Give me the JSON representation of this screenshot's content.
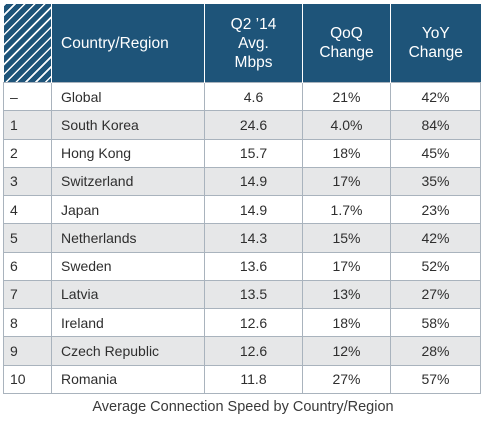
{
  "chart_data": {
    "type": "table",
    "title": "Average Connection Speed by Country/Region",
    "columns": [
      "",
      "Country/Region",
      "Q2 ’14 Avg. Mbps",
      "QoQ Change",
      "YoY Change"
    ],
    "header_lines": {
      "country": "Country/Region",
      "speed": [
        "Q2 ’14",
        "Avg.",
        "Mbps"
      ],
      "qoq": [
        "QoQ",
        "Change"
      ],
      "yoy": [
        "YoY",
        "Change"
      ]
    },
    "rows": [
      {
        "rank": "–",
        "country": "Global",
        "speed": "4.6",
        "qoq": "21%",
        "yoy": "42%"
      },
      {
        "rank": "1",
        "country": "South Korea",
        "speed": "24.6",
        "qoq": "4.0%",
        "yoy": "84%"
      },
      {
        "rank": "2",
        "country": "Hong Kong",
        "speed": "15.7",
        "qoq": "18%",
        "yoy": "45%"
      },
      {
        "rank": "3",
        "country": "Switzerland",
        "speed": "14.9",
        "qoq": "17%",
        "yoy": "35%"
      },
      {
        "rank": "4",
        "country": "Japan",
        "speed": "14.9",
        "qoq": "1.7%",
        "yoy": "23%"
      },
      {
        "rank": "5",
        "country": "Netherlands",
        "speed": "14.3",
        "qoq": "15%",
        "yoy": "42%"
      },
      {
        "rank": "6",
        "country": "Sweden",
        "speed": "13.6",
        "qoq": "17%",
        "yoy": "52%"
      },
      {
        "rank": "7",
        "country": "Latvia",
        "speed": "13.5",
        "qoq": "13%",
        "yoy": "27%"
      },
      {
        "rank": "8",
        "country": "Ireland",
        "speed": "12.6",
        "qoq": "18%",
        "yoy": "58%"
      },
      {
        "rank": "9",
        "country": "Czech Republic",
        "speed": "12.6",
        "qoq": "12%",
        "yoy": "28%"
      },
      {
        "rank": "10",
        "country": "Romania",
        "speed": "11.8",
        "qoq": "27%",
        "yoy": "57%"
      }
    ],
    "colors": {
      "header_bg": "#1e5479",
      "header_text": "#ffffff",
      "alt_row_bg": "#e6e7e8",
      "border": "#a9b3bd"
    }
  }
}
